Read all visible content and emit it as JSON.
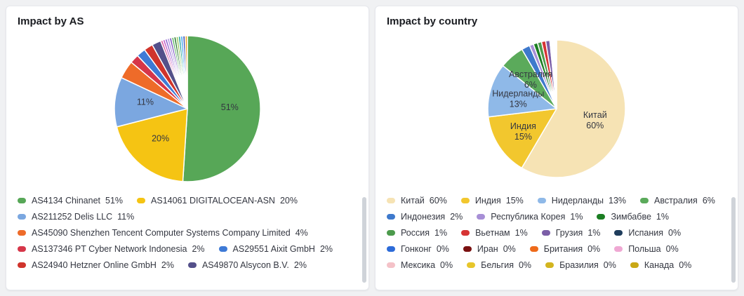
{
  "chart_data": [
    {
      "type": "pie",
      "title": "Impact by AS",
      "legend_position": "bottom",
      "label_mode": "percent",
      "label_min_pct": 5,
      "slices": [
        {
          "label": "AS4134 Chinanet",
          "value": 51,
          "color": "#57A757"
        },
        {
          "label": "AS14061 DIGITALOCEAN-ASN",
          "value": 20,
          "color": "#F5C413"
        },
        {
          "label": "AS211252 Delis LLC",
          "value": 11,
          "color": "#7BA7E0"
        },
        {
          "label": "AS45090 Shenzhen Tencent Computer Systems Company Limited",
          "value": 4,
          "color": "#EE6B29"
        },
        {
          "label": "AS137346 PT Cyber Network Indonesia",
          "value": 2,
          "color": "#D63649"
        },
        {
          "label": "AS29551 Aixit GmbH",
          "value": 2,
          "color": "#3E7AD6"
        },
        {
          "label": "AS24940 Hetzner Online GmbH",
          "value": 2,
          "color": "#D0342C"
        },
        {
          "label": "AS49870 Alsycon B.V.",
          "value": 2,
          "color": "#54508A"
        },
        {
          "label": "",
          "value": 0.5,
          "color": "#DC5FA0"
        },
        {
          "label": "",
          "value": 0.5,
          "color": "#C15FC9"
        },
        {
          "label": "",
          "value": 0.5,
          "color": "#9468D2"
        },
        {
          "label": "",
          "value": 0.5,
          "color": "#B49BE0"
        },
        {
          "label": "",
          "value": 0.5,
          "color": "#7E57C2"
        },
        {
          "label": "",
          "value": 0.5,
          "color": "#69BB6E"
        },
        {
          "label": "",
          "value": 0.5,
          "color": "#2F7D33"
        },
        {
          "label": "",
          "value": 0.5,
          "color": "#9CCB63"
        },
        {
          "label": "",
          "value": 0.5,
          "color": "#2AA69A"
        },
        {
          "label": "",
          "value": 0.5,
          "color": "#41A5F2"
        },
        {
          "label": "",
          "value": 0.5,
          "color": "#3F51B5"
        },
        {
          "label": "",
          "value": 0.5,
          "color": "#F0A32A"
        }
      ]
    },
    {
      "type": "pie",
      "title": "Impact by country",
      "legend_position": "bottom",
      "label_mode": "name-percent",
      "label_min_pct": 5,
      "slices": [
        {
          "label": "Китай",
          "value": 60,
          "color": "#F6E3B4"
        },
        {
          "label": "Индия",
          "value": 15,
          "color": "#F2C72E"
        },
        {
          "label": "Нидерланды",
          "value": 13,
          "color": "#8FB9E8"
        },
        {
          "label": "Австралия",
          "value": 6,
          "color": "#5BAA5B"
        },
        {
          "label": "Индонезия",
          "value": 2,
          "color": "#3E79CC"
        },
        {
          "label": "Республика Корея",
          "value": 1,
          "color": "#A78FD6"
        },
        {
          "label": "Зимбабве",
          "value": 1,
          "color": "#1B7E22"
        },
        {
          "label": "Россия",
          "value": 1,
          "color": "#4C9A4C"
        },
        {
          "label": "Вьетнам",
          "value": 1,
          "color": "#D63434"
        },
        {
          "label": "Грузия",
          "value": 1,
          "color": "#7B5EA7"
        },
        {
          "label": "Испания",
          "value": 0,
          "color": "#1F3D5C"
        },
        {
          "label": "Гонконг",
          "value": 0,
          "color": "#2D6BD8"
        },
        {
          "label": "Иран",
          "value": 0,
          "color": "#7A1010"
        },
        {
          "label": "Британия",
          "value": 0,
          "color": "#EE6A1A"
        },
        {
          "label": "Польша",
          "value": 0,
          "color": "#EFA8D3"
        },
        {
          "label": "Мексика",
          "value": 0,
          "color": "#F4C2C8"
        },
        {
          "label": "Бельгия",
          "value": 0,
          "color": "#E7C62B"
        },
        {
          "label": "Бразилия",
          "value": 0,
          "color": "#D3B51F"
        },
        {
          "label": "Канада",
          "value": 0,
          "color": "#C9A816"
        }
      ]
    }
  ]
}
